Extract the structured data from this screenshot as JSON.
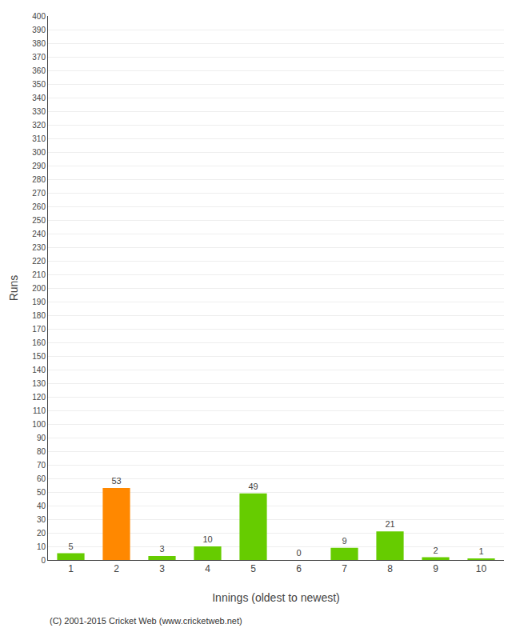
{
  "chart_data": {
    "type": "bar",
    "categories": [
      1,
      2,
      3,
      4,
      5,
      6,
      7,
      8,
      9,
      10
    ],
    "values": [
      5,
      53,
      3,
      10,
      49,
      0,
      9,
      21,
      2,
      1
    ],
    "colors": [
      "#66cc00",
      "#ff8800",
      "#66cc00",
      "#66cc00",
      "#66cc00",
      "#66cc00",
      "#66cc00",
      "#66cc00",
      "#66cc00",
      "#66cc00"
    ],
    "xlabel": "Innings (oldest to newest)",
    "ylabel": "Runs",
    "ylim": [
      0,
      400
    ],
    "yticks": [
      0,
      10,
      20,
      30,
      40,
      50,
      60,
      70,
      80,
      90,
      100,
      110,
      120,
      130,
      140,
      150,
      160,
      170,
      180,
      190,
      200,
      210,
      220,
      230,
      240,
      250,
      260,
      270,
      280,
      290,
      300,
      310,
      320,
      330,
      340,
      350,
      360,
      370,
      380,
      390,
      400
    ],
    "grid": true,
    "data_labels": true,
    "annotations": [
      "(C) 2001-2015 Cricket Web (www.cricketweb.net)"
    ]
  }
}
